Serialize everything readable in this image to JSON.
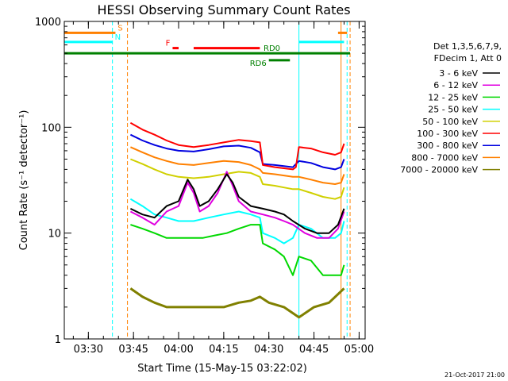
{
  "chart_data": {
    "type": "line",
    "title": "HESSI Observing Summary Count Rates",
    "xlabel": "Start Time (15-May-15 03:22:02)",
    "ylabel": "Count Rate (s⁻¹ detector⁻¹)",
    "y_scale": "log",
    "ylim": [
      1,
      1000
    ],
    "y_ticks": [
      "1",
      "10",
      "100",
      "1000"
    ],
    "x_ticks": [
      "03:30",
      "03:45",
      "04:00",
      "04:15",
      "04:30",
      "04:45",
      "05:00"
    ],
    "footer_date": "21-Oct-2017 21:00",
    "legend": {
      "title_lines": [
        "Det 1,3,5,6,7,9,",
        "FDecim 1, Att 0"
      ],
      "placement": "right"
    },
    "series": [
      {
        "name": "3 - 6 keV",
        "color": "#000000",
        "points": [
          [
            "03:44",
            17
          ],
          [
            "03:48",
            15
          ],
          [
            "03:52",
            14
          ],
          [
            "03:56",
            18
          ],
          [
            "04:00",
            20
          ],
          [
            "04:03",
            32
          ],
          [
            "04:05",
            26
          ],
          [
            "04:07",
            18
          ],
          [
            "04:10",
            20
          ],
          [
            "04:13",
            26
          ],
          [
            "04:16",
            36
          ],
          [
            "04:18",
            30
          ],
          [
            "04:20",
            22
          ],
          [
            "04:24",
            18
          ],
          [
            "04:28",
            17
          ],
          [
            "04:32",
            16
          ],
          [
            "04:35",
            15
          ],
          [
            "04:38",
            13
          ],
          [
            "04:42",
            11
          ],
          [
            "04:46",
            10
          ],
          [
            "04:50",
            10
          ],
          [
            "04:53",
            12
          ],
          [
            "04:55",
            17
          ]
        ]
      },
      {
        "name": "6 - 12 keV",
        "color": "#e000e0",
        "points": [
          [
            "03:44",
            16
          ],
          [
            "03:48",
            14
          ],
          [
            "03:52",
            12
          ],
          [
            "03:56",
            16
          ],
          [
            "04:00",
            18
          ],
          [
            "04:03",
            30
          ],
          [
            "04:05",
            24
          ],
          [
            "04:07",
            16
          ],
          [
            "04:10",
            18
          ],
          [
            "04:13",
            24
          ],
          [
            "04:16",
            38
          ],
          [
            "04:18",
            28
          ],
          [
            "04:20",
            20
          ],
          [
            "04:24",
            16
          ],
          [
            "04:28",
            15
          ],
          [
            "04:32",
            14
          ],
          [
            "04:35",
            13
          ],
          [
            "04:38",
            12
          ],
          [
            "04:42",
            10
          ],
          [
            "04:46",
            9
          ],
          [
            "04:50",
            9
          ],
          [
            "04:53",
            11
          ],
          [
            "04:55",
            16
          ]
        ]
      },
      {
        "name": "12 - 25 keV",
        "color": "#00d800",
        "points": [
          [
            "03:44",
            12
          ],
          [
            "03:48",
            11
          ],
          [
            "03:52",
            10
          ],
          [
            "03:56",
            9
          ],
          [
            "04:00",
            9
          ],
          [
            "04:04",
            9
          ],
          [
            "04:08",
            9
          ],
          [
            "04:12",
            9.5
          ],
          [
            "04:16",
            10
          ],
          [
            "04:20",
            11
          ],
          [
            "04:24",
            12
          ],
          [
            "04:27",
            12
          ],
          [
            "04:28",
            8
          ],
          [
            "04:32",
            7
          ],
          [
            "04:35",
            6
          ],
          [
            "04:38",
            4
          ],
          [
            "04:40",
            6
          ],
          [
            "04:44",
            5.5
          ],
          [
            "04:48",
            4
          ],
          [
            "04:52",
            4
          ],
          [
            "04:54",
            4
          ],
          [
            "04:55",
            5
          ]
        ]
      },
      {
        "name": "25 - 50 keV",
        "color": "#00ffff",
        "points": [
          [
            "03:44",
            21
          ],
          [
            "03:48",
            18
          ],
          [
            "03:52",
            15
          ],
          [
            "03:56",
            14
          ],
          [
            "04:00",
            13
          ],
          [
            "04:05",
            13
          ],
          [
            "04:10",
            14
          ],
          [
            "04:15",
            15
          ],
          [
            "04:20",
            16
          ],
          [
            "04:24",
            15
          ],
          [
            "04:27",
            14
          ],
          [
            "04:28",
            10
          ],
          [
            "04:32",
            9
          ],
          [
            "04:35",
            8
          ],
          [
            "04:38",
            9
          ],
          [
            "04:40",
            12
          ],
          [
            "04:44",
            11
          ],
          [
            "04:48",
            9
          ],
          [
            "04:52",
            9
          ],
          [
            "04:54",
            10
          ],
          [
            "04:55",
            13
          ]
        ]
      },
      {
        "name": "50 - 100 keV",
        "color": "#d0d000",
        "points": [
          [
            "03:44",
            50
          ],
          [
            "03:48",
            45
          ],
          [
            "03:52",
            40
          ],
          [
            "03:56",
            36
          ],
          [
            "04:00",
            34
          ],
          [
            "04:05",
            33
          ],
          [
            "04:10",
            34
          ],
          [
            "04:15",
            36
          ],
          [
            "04:20",
            38
          ],
          [
            "04:24",
            37
          ],
          [
            "04:27",
            34
          ],
          [
            "04:28",
            29
          ],
          [
            "04:32",
            28
          ],
          [
            "04:35",
            27
          ],
          [
            "04:38",
            26
          ],
          [
            "04:40",
            26
          ],
          [
            "04:44",
            24
          ],
          [
            "04:48",
            22
          ],
          [
            "04:52",
            21
          ],
          [
            "04:54",
            22
          ],
          [
            "04:55",
            27
          ]
        ]
      },
      {
        "name": "100 - 300 keV",
        "color": "#ff0000",
        "points": [
          [
            "03:44",
            110
          ],
          [
            "03:48",
            95
          ],
          [
            "03:52",
            85
          ],
          [
            "03:56",
            75
          ],
          [
            "04:00",
            68
          ],
          [
            "04:05",
            65
          ],
          [
            "04:10",
            68
          ],
          [
            "04:15",
            72
          ],
          [
            "04:20",
            76
          ],
          [
            "04:24",
            74
          ],
          [
            "04:27",
            72
          ],
          [
            "04:28",
            44
          ],
          [
            "04:32",
            42
          ],
          [
            "04:35",
            41
          ],
          [
            "04:38",
            40
          ],
          [
            "04:39",
            42
          ],
          [
            "04:40",
            65
          ],
          [
            "04:44",
            63
          ],
          [
            "04:48",
            58
          ],
          [
            "04:52",
            55
          ],
          [
            "04:54",
            58
          ],
          [
            "04:55",
            70
          ]
        ]
      },
      {
        "name": "300 - 800 keV",
        "color": "#0000e0",
        "points": [
          [
            "03:44",
            85
          ],
          [
            "03:48",
            75
          ],
          [
            "03:52",
            68
          ],
          [
            "03:56",
            63
          ],
          [
            "04:00",
            60
          ],
          [
            "04:05",
            59
          ],
          [
            "04:10",
            62
          ],
          [
            "04:15",
            66
          ],
          [
            "04:20",
            67
          ],
          [
            "04:24",
            64
          ],
          [
            "04:27",
            58
          ],
          [
            "04:28",
            45
          ],
          [
            "04:32",
            44
          ],
          [
            "04:35",
            43
          ],
          [
            "04:38",
            42
          ],
          [
            "04:40",
            48
          ],
          [
            "04:44",
            46
          ],
          [
            "04:48",
            42
          ],
          [
            "04:52",
            40
          ],
          [
            "04:54",
            42
          ],
          [
            "04:55",
            50
          ]
        ]
      },
      {
        "name": "800 - 7000 keV",
        "color": "#ff8000",
        "points": [
          [
            "03:44",
            65
          ],
          [
            "03:48",
            58
          ],
          [
            "03:52",
            52
          ],
          [
            "03:56",
            48
          ],
          [
            "04:00",
            45
          ],
          [
            "04:05",
            44
          ],
          [
            "04:10",
            46
          ],
          [
            "04:15",
            48
          ],
          [
            "04:20",
            47
          ],
          [
            "04:24",
            44
          ],
          [
            "04:27",
            40
          ],
          [
            "04:28",
            37
          ],
          [
            "04:32",
            36
          ],
          [
            "04:35",
            35
          ],
          [
            "04:38",
            34
          ],
          [
            "04:40",
            34
          ],
          [
            "04:44",
            32
          ],
          [
            "04:48",
            30
          ],
          [
            "04:52",
            29
          ],
          [
            "04:54",
            30
          ],
          [
            "04:55",
            36
          ]
        ]
      },
      {
        "name": "7000 - 20000 keV",
        "color": "#808000",
        "points": [
          [
            "03:44",
            3
          ],
          [
            "03:48",
            2.5
          ],
          [
            "03:52",
            2.2
          ],
          [
            "03:56",
            2
          ],
          [
            "04:00",
            2
          ],
          [
            "04:05",
            2
          ],
          [
            "04:10",
            2
          ],
          [
            "04:15",
            2
          ],
          [
            "04:20",
            2.2
          ],
          [
            "04:24",
            2.3
          ],
          [
            "04:27",
            2.5
          ],
          [
            "04:30",
            2.2
          ],
          [
            "04:35",
            2
          ],
          [
            "04:40",
            1.6
          ],
          [
            "04:45",
            2
          ],
          [
            "04:50",
            2.2
          ],
          [
            "04:55",
            3
          ]
        ]
      }
    ],
    "flags": [
      {
        "label": "S",
        "color": "#ff8000",
        "segments": [
          [
            "03:22",
            "03:39"
          ],
          [
            "04:53",
            "04:56"
          ]
        ],
        "y_value": 780
      },
      {
        "label": "N",
        "color": "#00ffff",
        "segments": [
          [
            "03:22",
            "03:38"
          ],
          [
            "04:40",
            "04:55"
          ]
        ],
        "y_value": 640
      },
      {
        "label": "F",
        "color": "#ff0000",
        "segments": [
          [
            "03:58",
            "04:00"
          ],
          [
            "04:05",
            "04:27"
          ]
        ],
        "y_value": 560
      },
      {
        "label": "RD0",
        "color": "#008000",
        "segments": [
          [
            "03:22",
            "04:57"
          ]
        ],
        "y_value": 500
      },
      {
        "label": "RD6",
        "color": "#008000",
        "segments": [
          [
            "04:30",
            "04:37"
          ]
        ],
        "y_value": 430
      }
    ],
    "vertical_lines": [
      {
        "time": "03:22",
        "color": "#00ffff",
        "style": "solid"
      },
      {
        "time": "03:38",
        "color": "#00ffff",
        "style": "dashed"
      },
      {
        "time": "03:43",
        "color": "#ff8000",
        "style": "dashed"
      },
      {
        "time": "04:40",
        "color": "#00ffff",
        "style": "solid"
      },
      {
        "time": "04:54",
        "color": "#ff8000",
        "style": "solid"
      },
      {
        "time": "04:56",
        "color": "#00ffff",
        "style": "dashed"
      },
      {
        "time": "04:57",
        "color": "#ff8000",
        "style": "dashed"
      }
    ]
  }
}
